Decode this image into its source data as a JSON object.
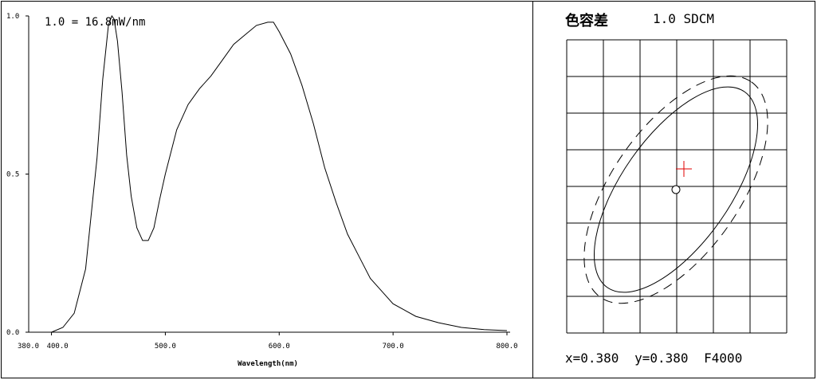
{
  "spectrum": {
    "scale_label": "1.0 = 16.8mW/nm",
    "xlabel": "Wavelength(nm)",
    "x_tick_labels": [
      "380.0",
      "400.0",
      "500.0",
      "600.0",
      "700.0",
      "800.0"
    ],
    "y_tick_labels": [
      "0.0",
      "0.5",
      "1.0"
    ]
  },
  "sdcm": {
    "title_cn": "色容差",
    "title": "1.0 SDCM",
    "x_label": "x=0.380",
    "y_label": "y=0.380",
    "ref_label": "F4000"
  },
  "colors": {
    "line": "#000000",
    "grid": "#000000",
    "cross": "#e00000"
  },
  "chart_data": [
    {
      "type": "line",
      "title": "1.0 = 16.8mW/nm",
      "xlabel": "Wavelength(nm)",
      "ylabel": "",
      "xlim": [
        380,
        800
      ],
      "ylim": [
        0,
        1.0
      ],
      "x_ticks": [
        400,
        500,
        600,
        700,
        800
      ],
      "y_ticks": [
        0.0,
        0.5,
        1.0
      ],
      "grid": false,
      "series": [
        {
          "x": [
            380,
            400,
            410,
            420,
            430,
            440,
            445,
            450,
            453,
            455,
            458,
            462,
            466,
            470,
            475,
            480,
            485,
            490,
            495,
            500,
            510,
            520,
            530,
            540,
            550,
            560,
            570,
            580,
            590,
            595,
            600,
            610,
            620,
            630,
            640,
            650,
            660,
            670,
            680,
            690,
            700,
            720,
            740,
            760,
            780,
            800
          ],
          "values": [
            0.0,
            0.0,
            0.015,
            0.06,
            0.2,
            0.55,
            0.8,
            0.97,
            1.0,
            0.99,
            0.92,
            0.76,
            0.56,
            0.43,
            0.33,
            0.29,
            0.29,
            0.33,
            0.42,
            0.5,
            0.64,
            0.72,
            0.77,
            0.81,
            0.86,
            0.91,
            0.94,
            0.97,
            0.98,
            0.98,
            0.95,
            0.88,
            0.78,
            0.66,
            0.52,
            0.41,
            0.31,
            0.24,
            0.17,
            0.13,
            0.09,
            0.05,
            0.03,
            0.015,
            0.008,
            0.005
          ]
        }
      ]
    },
    {
      "type": "scatter",
      "title": "1.0 SDCM",
      "x_value": 0.38,
      "y_value": 0.38,
      "reference": "F4000",
      "grid": true
    }
  ]
}
